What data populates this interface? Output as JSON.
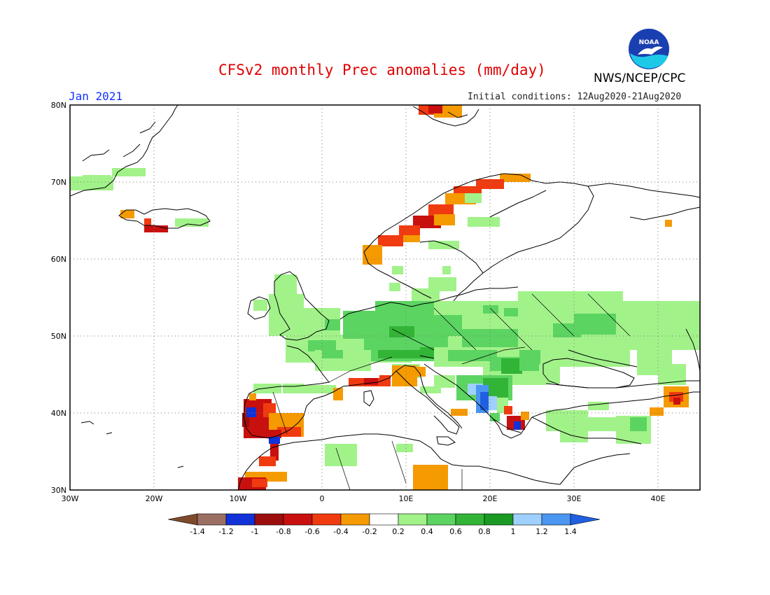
{
  "header": {
    "title": "CFSv2 monthly Prec anomalies (mm/day)",
    "month": "Jan 2021",
    "initial_conditions": "Initial conditions: 12Aug2020-21Aug2020",
    "agency": "NWS/NCEP/CPC",
    "logo_text": "NOAA"
  },
  "map": {
    "lon_range": [
      -30,
      45
    ],
    "lat_range": [
      30,
      80
    ],
    "lat_labels": [
      "30N",
      "40N",
      "50N",
      "60N",
      "70N",
      "80N"
    ],
    "lon_labels": [
      "30W",
      "20W",
      "10W",
      "0",
      "10E",
      "20E",
      "30E",
      "40E"
    ],
    "grid": "dotted"
  },
  "colorbar": {
    "labels": [
      "-1.4",
      "-1.2",
      "-1",
      "-0.8",
      "-0.6",
      "-0.4",
      "-0.2",
      "0.2",
      "0.4",
      "0.6",
      "0.8",
      "1",
      "1.2",
      "1.4"
    ],
    "colors": {
      "lt_m14": "#7f4a2c",
      "m14_m12": "#9a6f62",
      "m12_m1": "#1032d8",
      "m1_m08": "#9c0d0d",
      "m08_m06": "#c8100f",
      "m06_m04": "#f03a10",
      "m04_m02": "#f59a00",
      "m02_02": "#ffffff",
      "02_04": "#a2f28a",
      "04_06": "#5cd462",
      "06_08": "#32b436",
      "08_1": "#1a9a22",
      "1_12": "#9fd0ff",
      "12_14": "#4a96f0",
      "gt_14": "#2060e0"
    }
  },
  "colors": {
    "title": "#e00000",
    "month": "#1030ff",
    "coast": "#000000"
  }
}
